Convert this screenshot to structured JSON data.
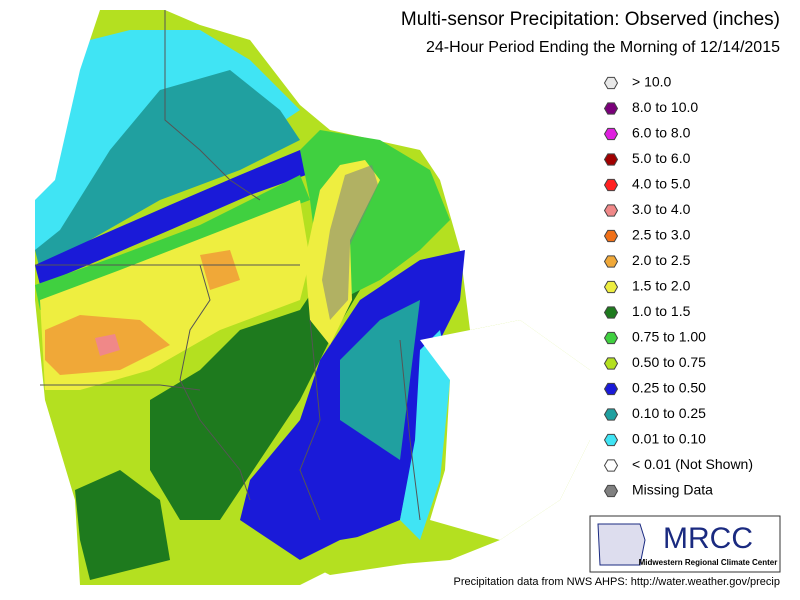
{
  "title": "Multi-sensor Precipitation:  Observed (inches)",
  "subtitle": "24-Hour Period Ending the Morning of 12/14/2015",
  "legend": [
    {
      "label": "> 10.0",
      "color": "#e8e8e8"
    },
    {
      "label": "8.0 to 10.0",
      "color": "#7a007a"
    },
    {
      "label": "6.0 to 8.0",
      "color": "#e020e0"
    },
    {
      "label": "5.0 to 6.0",
      "color": "#a00000"
    },
    {
      "label": "4.0 to 5.0",
      "color": "#ff2020"
    },
    {
      "label": "3.0 to 4.0",
      "color": "#f08888"
    },
    {
      "label": "2.5 to 3.0",
      "color": "#f07018"
    },
    {
      "label": "2.0 to 2.5",
      "color": "#f0a838"
    },
    {
      "label": "1.5 to 2.0",
      "color": "#eeee40"
    },
    {
      "label": "1.0 to 1.5",
      "color": "#1e7a1e"
    },
    {
      "label": "0.75 to 1.00",
      "color": "#40d040"
    },
    {
      "label": "0.50 to 0.75",
      "color": "#b4e020"
    },
    {
      "label": "0.25 to 0.50",
      "color": "#1a1ad8"
    },
    {
      "label": "0.10 to 0.25",
      "color": "#20a0a0"
    },
    {
      "label": "0.01 to 0.10",
      "color": "#40e4f4"
    },
    {
      "label": "< 0.01 (Not Shown)",
      "color": "#ffffff"
    },
    {
      "label": "Missing Data",
      "color": "#808080"
    }
  ],
  "logo": {
    "name": "MRCC",
    "full_name": "Midwestern Regional Climate Center"
  },
  "footer": "Precipitation data from NWS AHPS: http://water.weather.gov/precip"
}
